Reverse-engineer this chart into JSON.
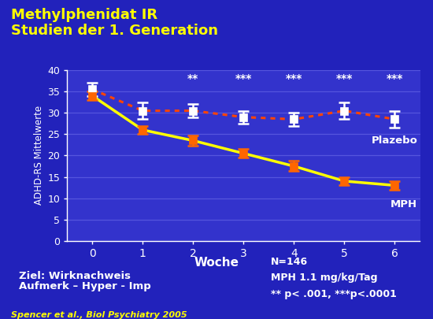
{
  "title_line1": "Methylphenidat IR",
  "title_line2": "Studien der 1. Generation",
  "title_color": "#FFFF00",
  "bg_color": "#2222BB",
  "plot_bg_color": "#3333CC",
  "magenta_line_color": "#FF00BB",
  "x_weeks": [
    0,
    1,
    2,
    3,
    4,
    5,
    6
  ],
  "mph_y": [
    34.0,
    26.0,
    23.5,
    20.5,
    17.5,
    14.0,
    13.0
  ],
  "mph_yerr": [
    1.0,
    1.0,
    1.2,
    1.0,
    1.2,
    1.0,
    1.0
  ],
  "placebo_y": [
    35.5,
    30.5,
    30.5,
    29.0,
    28.5,
    30.5,
    28.5
  ],
  "placebo_yerr": [
    1.5,
    2.0,
    1.5,
    1.5,
    1.5,
    2.0,
    2.0
  ],
  "mph_line_color": "#FFFF00",
  "mph_marker_color": "#FF6600",
  "mph_marker_edge": "#FF6600",
  "placebo_line_color": "#FF4400",
  "placebo_marker_color": "#FFFFFF",
  "placebo_marker_edge": "#FFFFFF",
  "significance": [
    "",
    "",
    "**",
    "***",
    "***",
    "***",
    "***"
  ],
  "sig_color": "#FFFFFF",
  "sig_fontsize": 10,
  "ylabel": "ADHD-RS Mittelwerte",
  "ylim": [
    0,
    40
  ],
  "yticks": [
    0,
    5,
    10,
    15,
    20,
    25,
    30,
    35,
    40
  ],
  "label_plazebo": "Plazebo",
  "label_mph": "MPH",
  "label_color": "#FFFFFF",
  "box_text_line1": "Ziel: Wirknachweis",
  "box_text_line2": "Aufmerk – Hyper - Imp",
  "box_bg": "#00007A",
  "box_border_color": "#FFFFFF",
  "box_text_color": "#FFFFFF",
  "woche_label": "Woche",
  "woche_color": "#FFFFFF",
  "footnote_right_line1": "N=146",
  "footnote_right_line2": "MPH 1.1 mg/kg/Tag",
  "footnote_right_line3": "** p< .001, ***p<.0001",
  "footnote_right_color": "#FFFFFF",
  "footnote_author": "Spencer et al., Biol Psychiatry 2005",
  "footnote_author_color": "#FFFF00",
  "tick_color": "#FFFFFF",
  "axis_color": "#FFFFFF",
  "grid_color": "#5555DD"
}
